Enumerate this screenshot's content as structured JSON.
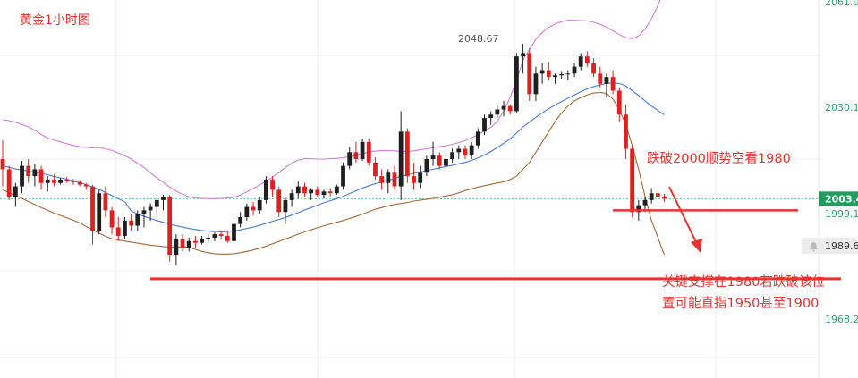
{
  "chart_data": {
    "type": "candlestick",
    "title": "黄金1小时图",
    "y_axis": {
      "side": "right",
      "tick_labels": [
        "2061.0",
        "2030.1",
        "1999.1",
        "1968.2"
      ],
      "range": [
        1960,
        2062
      ]
    },
    "current_price_label": "2003.4",
    "current_price": 2003.4,
    "marker_price_label": "1989.6",
    "marker_price": 1989.6,
    "high_label": "2048.67",
    "high_value": 2048.67,
    "support_level": 1980,
    "resistance_level": 2000,
    "candles": [
      [
        2015.0,
        2020.5,
        2007.0,
        2012.0
      ],
      [
        2012.0,
        2013.0,
        2003.0,
        2004.0
      ],
      [
        2004.0,
        2008.0,
        2001.0,
        2007.0
      ],
      [
        2007.0,
        2014.5,
        2005.0,
        2013.0
      ],
      [
        2013.0,
        2015.0,
        2008.0,
        2010.0
      ],
      [
        2010.0,
        2013.5,
        2007.0,
        2012.0
      ],
      [
        2012.0,
        2013.0,
        2006.0,
        2008.0
      ],
      [
        2008.0,
        2010.0,
        2005.5,
        2009.0
      ],
      [
        2009.0,
        2010.5,
        2007.0,
        2008.0
      ],
      [
        2008.0,
        2009.5,
        2007.5,
        2009.0
      ],
      [
        2009.0,
        2009.8,
        2008.0,
        2008.5
      ],
      [
        2008.5,
        2009.2,
        2007.5,
        2008.3
      ],
      [
        2008.3,
        2008.8,
        2007.0,
        2007.5
      ],
      [
        2007.5,
        2008.0,
        2006.0,
        2007.0
      ],
      [
        2007.0,
        2007.5,
        1990.0,
        1994.0
      ],
      [
        1994.0,
        2006.0,
        1993.0,
        2005.0
      ],
      [
        2005.0,
        2007.0,
        1998.0,
        2000.0
      ],
      [
        2000.0,
        2001.0,
        1993.0,
        1995.0
      ],
      [
        1995.0,
        1998.0,
        1991.0,
        1992.5
      ],
      [
        1992.5,
        1998.0,
        1991.5,
        1997.0
      ],
      [
        1997.0,
        1999.0,
        1994.0,
        1995.5
      ],
      [
        1995.5,
        2000.0,
        1994.0,
        1999.0
      ],
      [
        1999.0,
        2001.0,
        1995.0,
        2000.0
      ],
      [
        2000.0,
        2002.0,
        1997.0,
        2001.0
      ],
      [
        2001.0,
        2004.0,
        1998.0,
        2003.0
      ],
      [
        2003.0,
        2004.5,
        2000.0,
        2004.0
      ],
      [
        2004.0,
        2004.5,
        1985.0,
        1987.0
      ],
      [
        1987.0,
        1993.0,
        1984.0,
        1991.5
      ],
      [
        1991.5,
        1993.0,
        1988.0,
        1989.0
      ],
      [
        1989.0,
        1992.0,
        1988.0,
        1991.0
      ],
      [
        1991.0,
        1992.5,
        1989.0,
        1990.5
      ],
      [
        1990.5,
        1992.5,
        1990.0,
        1991.5
      ],
      [
        1991.5,
        1993.0,
        1990.5,
        1992.0
      ],
      [
        1992.0,
        1993.5,
        1991.0,
        1993.0
      ],
      [
        1993.0,
        1994.0,
        1991.5,
        1992.5
      ],
      [
        1992.5,
        1994.0,
        1990.5,
        1991.0
      ],
      [
        1991.0,
        1997.0,
        1990.5,
        1996.0
      ],
      [
        1996.0,
        1999.5,
        1995.0,
        1998.0
      ],
      [
        1998.0,
        2002.0,
        1997.0,
        2001.0
      ],
      [
        2001.0,
        2002.5,
        1998.5,
        2000.0
      ],
      [
        2000.0,
        2004.0,
        1999.0,
        2003.0
      ],
      [
        2003.0,
        2010.0,
        2002.0,
        2009.0
      ],
      [
        2009.0,
        2010.0,
        2004.0,
        2006.0
      ],
      [
        2006.0,
        2007.0,
        1998.0,
        1999.5
      ],
      [
        1999.5,
        2004.0,
        1996.0,
        2003.0
      ],
      [
        2003.0,
        2006.0,
        2001.0,
        2005.0
      ],
      [
        2005.0,
        2008.5,
        2003.5,
        2007.0
      ],
      [
        2007.0,
        2008.0,
        2004.0,
        2005.0
      ],
      [
        2005.0,
        2006.5,
        2003.0,
        2006.0
      ],
      [
        2006.0,
        2007.0,
        2004.0,
        2004.5
      ],
      [
        2004.5,
        2006.0,
        2003.5,
        2005.5
      ],
      [
        2005.5,
        2006.5,
        2004.0,
        2005.0
      ],
      [
        2005.0,
        2007.5,
        2004.5,
        2007.0
      ],
      [
        2007.0,
        2014.0,
        2006.0,
        2013.0
      ],
      [
        2013.0,
        2018.5,
        2012.0,
        2017.0
      ],
      [
        2017.0,
        2020.0,
        2014.0,
        2015.0
      ],
      [
        2015.0,
        2021.0,
        2014.5,
        2020.0
      ],
      [
        2020.0,
        2021.0,
        2013.0,
        2014.0
      ],
      [
        2014.0,
        2015.5,
        2009.0,
        2010.0
      ],
      [
        2010.0,
        2012.0,
        2006.0,
        2008.0
      ],
      [
        2008.0,
        2012.0,
        2005.0,
        2011.0
      ],
      [
        2011.0,
        2013.0,
        2006.0,
        2007.0
      ],
      [
        2007.0,
        2029.0,
        2003.0,
        2023.0
      ],
      [
        2023.0,
        2024.0,
        2008.0,
        2010.0
      ],
      [
        2010.0,
        2014.0,
        2006.0,
        2008.0
      ],
      [
        2008.0,
        2013.0,
        2006.5,
        2011.0
      ],
      [
        2011.0,
        2016.0,
        2010.0,
        2015.0
      ],
      [
        2015.0,
        2020.0,
        2013.0,
        2016.0
      ],
      [
        2016.0,
        2017.0,
        2012.0,
        2013.0
      ],
      [
        2013.0,
        2016.0,
        2012.0,
        2015.0
      ],
      [
        2015.0,
        2018.0,
        2014.0,
        2017.0
      ],
      [
        2017.0,
        2019.0,
        2015.0,
        2018.0
      ],
      [
        2018.0,
        2019.0,
        2015.0,
        2016.0
      ],
      [
        2016.0,
        2020.0,
        2015.0,
        2019.0
      ],
      [
        2019.0,
        2024.0,
        2018.0,
        2023.0
      ],
      [
        2023.0,
        2028.0,
        2022.0,
        2027.0
      ],
      [
        2027.0,
        2029.0,
        2025.0,
        2028.0
      ],
      [
        2028.0,
        2030.5,
        2027.0,
        2029.5
      ],
      [
        2029.5,
        2032.0,
        2027.5,
        2030.5
      ],
      [
        2030.5,
        2031.0,
        2028.0,
        2029.0
      ],
      [
        2029.0,
        2046.0,
        2028.5,
        2045.0
      ],
      [
        2045.0,
        2048.67,
        2040.0,
        2046.0
      ],
      [
        2046.0,
        2047.5,
        2032.0,
        2034.0
      ],
      [
        2034.0,
        2042.0,
        2032.0,
        2040.0
      ],
      [
        2040.0,
        2043.0,
        2037.0,
        2041.0
      ],
      [
        2041.0,
        2043.5,
        2038.0,
        2039.0
      ],
      [
        2039.0,
        2040.0,
        2037.0,
        2039.5
      ],
      [
        2039.5,
        2040.5,
        2038.5,
        2039.8
      ],
      [
        2039.8,
        2041.0,
        2038.0,
        2040.0
      ],
      [
        2040.0,
        2043.0,
        2039.0,
        2042.0
      ],
      [
        2042.0,
        2046.0,
        2041.0,
        2045.0
      ],
      [
        2045.0,
        2046.5,
        2042.0,
        2043.0
      ],
      [
        2043.0,
        2044.5,
        2039.0,
        2040.0
      ],
      [
        2040.0,
        2042.0,
        2036.0,
        2037.0
      ],
      [
        2037.0,
        2040.0,
        2033.0,
        2039.0
      ],
      [
        2039.0,
        2041.0,
        2034.0,
        2035.0
      ],
      [
        2035.0,
        2036.0,
        2026.0,
        2028.0
      ],
      [
        2028.0,
        2031.0,
        2015.0,
        2018.0
      ],
      [
        2018.0,
        2019.0,
        1998.0,
        1999.5
      ],
      [
        1999.5,
        2003.0,
        1997.0,
        2001.5
      ],
      [
        2001.5,
        2004.0,
        1999.5,
        2003.0
      ],
      [
        2003.0,
        2006.5,
        2002.0,
        2005.0
      ],
      [
        2005.0,
        2006.0,
        2003.5,
        2004.0
      ],
      [
        2004.0,
        2004.8,
        2002.5,
        2003.4
      ]
    ],
    "bollinger_mid": [
      2013.0,
      2012.6,
      2012.1,
      2011.8,
      2011.5,
      2011.1,
      2010.8,
      2010.4,
      2009.9,
      2009.5,
      2009.1,
      2008.6,
      2008.1,
      2007.5,
      2006.8,
      2006.1,
      2005.2,
      2004.3,
      2003.4,
      2002.5,
      1999.8,
      1999.0,
      1998.2,
      1997.6,
      1997.0,
      1996.5,
      1996.0,
      1995.5,
      1995.1,
      1994.7,
      1994.4,
      1994.1,
      1993.9,
      1993.8,
      1993.7,
      1993.8,
      1994.0,
      1994.3,
      1994.7,
      1995.1,
      1995.6,
      1996.2,
      1996.8,
      1997.3,
      1997.9,
      1998.6,
      1999.3,
      2000.1,
      2000.8,
      2001.5,
      2002.2,
      2002.8,
      2003.4,
      2004.1,
      2004.9,
      2005.7,
      2006.5,
      2007.2,
      2007.8,
      2008.3,
      2008.8,
      2009.3,
      2010.0,
      2010.4,
      2010.8,
      2011.2,
      2011.6,
      2012.0,
      2012.4,
      2012.8,
      2013.2,
      2013.6,
      2014.0,
      2014.6,
      2015.3,
      2016.2,
      2017.2,
      2018.4,
      2019.6,
      2020.9,
      2022.6,
      2024.4,
      2025.8,
      2027.2,
      2028.5,
      2029.7,
      2030.8,
      2031.8,
      2032.8,
      2033.7,
      2034.7,
      2035.5,
      2036.2,
      2036.7,
      2037.1,
      2037.3,
      2037.1,
      2036.4,
      2035.0,
      2033.6,
      2032.0,
      2030.5,
      2029.2,
      2027.9
    ],
    "bollinger_upper": [
      2026.5,
      2026.2,
      2025.8,
      2025.1,
      2024.4,
      2023.4,
      2022.2,
      2021.1,
      2020.5,
      2020.0,
      2019.5,
      2019.0,
      2018.6,
      2018.4,
      2018.3,
      2018.3,
      2018.0,
      2017.5,
      2016.8,
      2016.0,
      2015.0,
      2013.8,
      2012.5,
      2011.0,
      2009.5,
      2008.2,
      2006.8,
      2005.6,
      2004.7,
      2004.0,
      2003.6,
      2003.5,
      2003.4,
      2003.4,
      2003.5,
      2003.6,
      2003.8,
      2004.5,
      2005.4,
      2006.4,
      2007.4,
      2008.5,
      2009.7,
      2011.0,
      2012.5,
      2013.8,
      2014.7,
      2015.1,
      2015.1,
      2015.0,
      2015.0,
      2015.1,
      2015.2,
      2015.4,
      2015.7,
      2016.1,
      2016.6,
      2017.0,
      2017.3,
      2017.5,
      2017.5,
      2017.4,
      2017.2,
      2017.2,
      2017.4,
      2017.7,
      2018.0,
      2018.3,
      2018.6,
      2018.9,
      2019.3,
      2019.8,
      2020.4,
      2021.2,
      2022.1,
      2023.2,
      2024.3,
      2026.0,
      2029.0,
      2033.0,
      2038.0,
      2044.0,
      2047.0,
      2050.0,
      2052.0,
      2053.5,
      2054.5,
      2055.2,
      2055.6,
      2055.6,
      2055.5,
      2055.4,
      2055.0,
      2054.4,
      2053.6,
      2052.5,
      2051.4,
      2050.5,
      2050.2,
      2051.0,
      2053.0,
      2056.0,
      2060.0,
      2064.0
    ],
    "bollinger_lower": [
      2006.0,
      2005.2,
      2004.3,
      2003.5,
      2002.6,
      2001.7,
      2000.8,
      2000.0,
      1999.2,
      1998.5,
      1997.8,
      1997.1,
      1996.3,
      1995.3,
      1994.3,
      1993.3,
      1992.4,
      1991.7,
      1991.3,
      1991.0,
      1990.7,
      1990.4,
      1990.1,
      1989.8,
      1989.6,
      1989.4,
      1989.3,
      1989.3,
      1989.3,
      1989.2,
      1988.6,
      1988.0,
      1987.6,
      1987.3,
      1987.2,
      1987.2,
      1987.3,
      1987.6,
      1988.0,
      1988.4,
      1988.9,
      1989.5,
      1990.2,
      1990.9,
      1991.6,
      1992.3,
      1993.0,
      1993.7,
      1994.3,
      1994.9,
      1995.5,
      1996.0,
      1996.5,
      1997.0,
      1997.6,
      1998.2,
      1998.9,
      1999.6,
      2000.3,
      2000.8,
      2001.3,
      2001.7,
      2002.0,
      2002.3,
      2002.7,
      2003.0,
      2003.2,
      2003.5,
      2003.8,
      2004.2,
      2004.6,
      2005.1,
      2005.8,
      2006.3,
      2006.8,
      2007.2,
      2007.6,
      2008.0,
      2008.3,
      2009.0,
      2010.0,
      2012.0,
      2014.0,
      2017.0,
      2020.0,
      2023.0,
      2026.0,
      2028.5,
      2030.5,
      2032.0,
      2033.0,
      2033.8,
      2034.3,
      2034.5,
      2034.2,
      2032.5,
      2029.5,
      2025.0,
      2019.0,
      2012.0,
      2004.0,
      1997.0,
      1992.0,
      1987.0
    ]
  },
  "annotations": {
    "chart_title": "黄金1小时图",
    "breakdown_text": "跌破2000顺势空看1980",
    "support_text_line1": "关键支撑在1980若跌破该位",
    "support_text_line2": "置可能直指1950甚至1900"
  },
  "colors": {
    "up_candle": "#1f1f1f",
    "down_candle": "#e02020",
    "bollinger_upper": "#d27fd8",
    "bollinger_mid": "#4a78d8",
    "bollinger_lower": "#a6693a",
    "annotation": "#e8332f",
    "axis_text": "#2fa372",
    "price_tag_bg": "#1f9d5c"
  },
  "icons": {
    "marker_icon": "bell-icon"
  }
}
